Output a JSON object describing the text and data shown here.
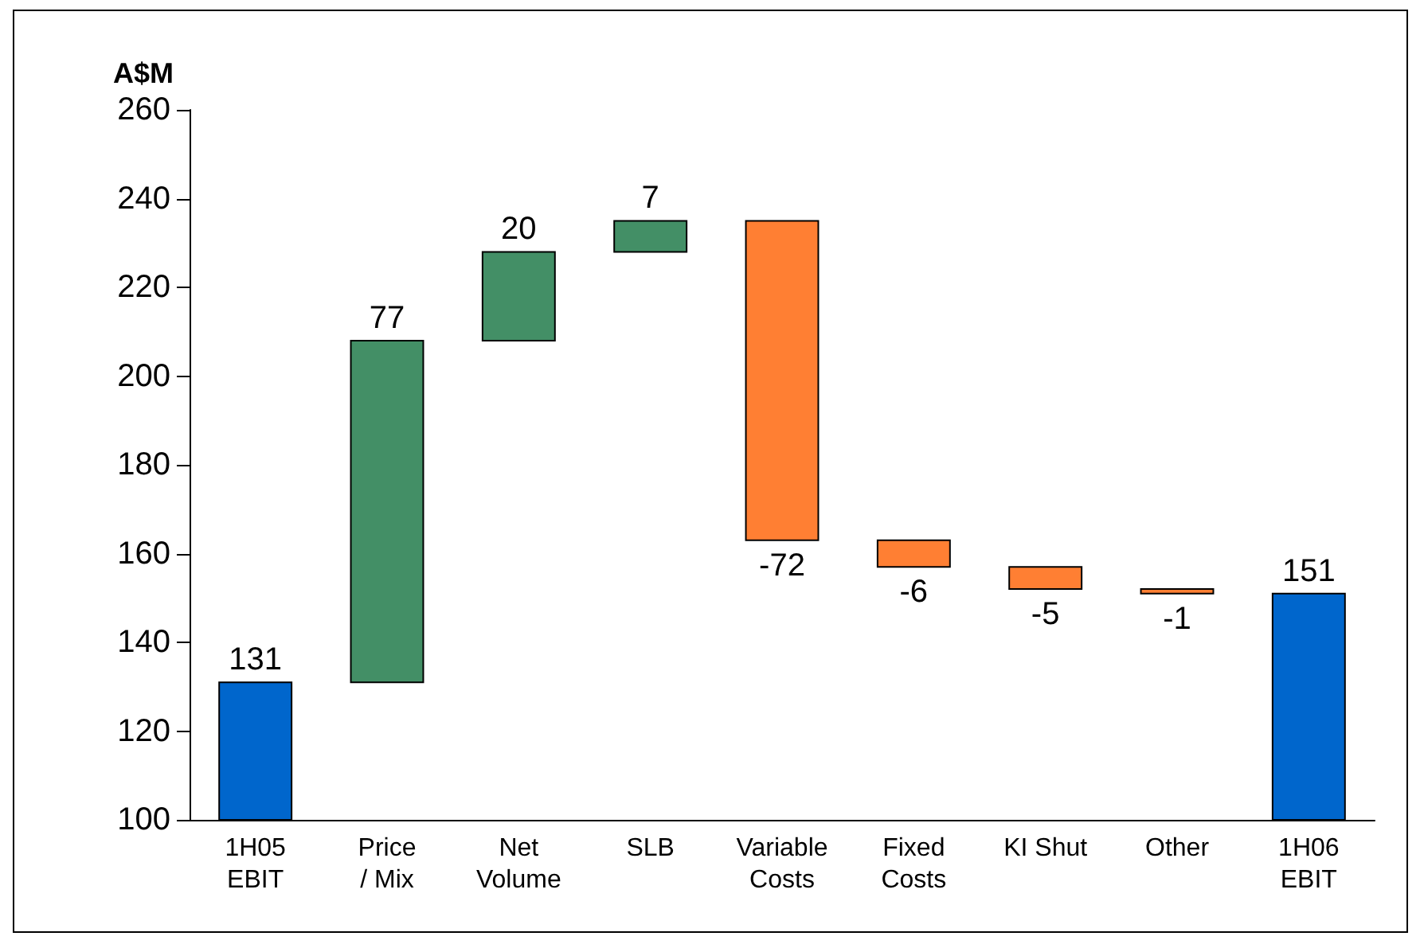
{
  "chart_data": {
    "type": "bar",
    "ylabel": "A$M",
    "categories": [
      "1H05\nEBIT",
      "Price\n/ Mix",
      "Net\nVolume",
      "SLB",
      "Variable\nCosts",
      "Fixed\nCosts",
      "KI Shut",
      "Other",
      "1H06\nEBIT"
    ],
    "values": [
      131,
      77,
      20,
      7,
      -72,
      -6,
      -5,
      -1,
      151
    ],
    "base": [
      null,
      131,
      208,
      228,
      235,
      163,
      157,
      152,
      null
    ],
    "colors": [
      "#0066cc",
      "#438f66",
      "#438f66",
      "#438f66",
      "#ff7f33",
      "#ff7f33",
      "#ff7f33",
      "#ff7f33",
      "#0066cc"
    ],
    "ylim": [
      100,
      260
    ],
    "yticks": [
      100,
      120,
      140,
      160,
      180,
      200,
      220,
      240,
      260
    ],
    "data_labels": true
  }
}
